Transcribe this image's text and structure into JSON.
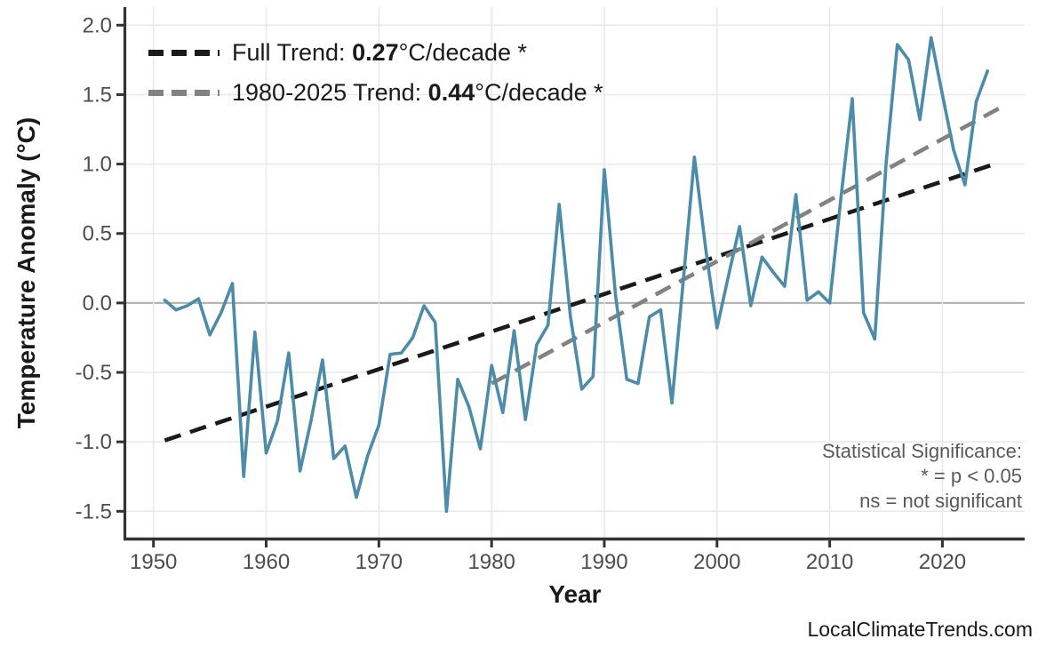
{
  "chart_data": {
    "type": "line",
    "title": "",
    "xlabel": "Year",
    "ylabel": "Temperature Anomaly (°C)",
    "xlim": [
      1947.5,
      2027.3
    ],
    "ylim": [
      -1.69,
      2.13
    ],
    "x_ticks": [
      1950,
      1960,
      1970,
      1980,
      1990,
      2000,
      2010,
      2020
    ],
    "y_ticks": [
      -1.5,
      -1.0,
      -0.5,
      0.0,
      0.5,
      1.0,
      1.5,
      2.0
    ],
    "grid": true,
    "series": [
      {
        "name": "annual-temperature-anomaly",
        "color": "#4d8ca8",
        "style": "solid",
        "x": [
          1951,
          1952,
          1953,
          1954,
          1955,
          1956,
          1957,
          1958,
          1959,
          1960,
          1961,
          1962,
          1963,
          1964,
          1965,
          1966,
          1967,
          1968,
          1969,
          1970,
          1971,
          1972,
          1973,
          1974,
          1975,
          1976,
          1977,
          1978,
          1979,
          1980,
          1981,
          1982,
          1983,
          1984,
          1985,
          1986,
          1987,
          1988,
          1989,
          1990,
          1991,
          1992,
          1993,
          1994,
          1995,
          1996,
          1997,
          1998,
          1999,
          2000,
          2001,
          2002,
          2003,
          2004,
          2005,
          2006,
          2007,
          2008,
          2009,
          2010,
          2011,
          2012,
          2013,
          2014,
          2015,
          2016,
          2017,
          2018,
          2019,
          2020,
          2021,
          2022,
          2023,
          2024
        ],
        "values": [
          0.02,
          -0.05,
          -0.02,
          0.03,
          -0.23,
          -0.07,
          0.14,
          -1.25,
          -0.21,
          -1.08,
          -0.85,
          -0.36,
          -1.21,
          -0.84,
          -0.41,
          -1.12,
          -1.03,
          -1.4,
          -1.1,
          -0.88,
          -0.37,
          -0.36,
          -0.25,
          -0.02,
          -0.14,
          -1.5,
          -0.55,
          -0.75,
          -1.05,
          -0.45,
          -0.79,
          -0.2,
          -0.84,
          -0.3,
          -0.16,
          0.71,
          -0.1,
          -0.62,
          -0.53,
          0.96,
          0.05,
          -0.55,
          -0.58,
          -0.1,
          -0.05,
          -0.72,
          0.15,
          1.05,
          0.39,
          -0.18,
          0.19,
          0.55,
          -0.02,
          0.33,
          0.22,
          0.12,
          0.78,
          0.02,
          0.08,
          0.0,
          0.76,
          1.47,
          -0.07,
          -0.26,
          1.0,
          1.86,
          1.75,
          1.32,
          1.91,
          1.5,
          1.1,
          0.85,
          1.45,
          1.67
        ]
      },
      {
        "name": "full-trend",
        "color": "#1a1a1a",
        "style": "dashed",
        "x": [
          1951,
          2025
        ],
        "values": [
          -0.99,
          1.01
        ]
      },
      {
        "name": "trend-1980-2025",
        "color": "#828282",
        "style": "dashed",
        "x": [
          1980,
          2025
        ],
        "values": [
          -0.58,
          1.4
        ]
      }
    ],
    "legend": [
      {
        "prefix": "Full Trend: ",
        "value": "0.27",
        "suffix": "°C/decade *",
        "color": "#1a1a1a"
      },
      {
        "prefix": "1980-2025 Trend: ",
        "value": "0.44",
        "suffix": "°C/decade *",
        "color": "#828282"
      }
    ],
    "annotations": {
      "line1": "Statistical Significance:",
      "line2": "* = p < 0.05",
      "line3": "ns = not significant"
    },
    "watermark": "LocalClimateTrends.com",
    "colors": {
      "background": "#ffffff",
      "gridline": "#e8e8e8",
      "zero_line": "#b5b5b5",
      "axis_line": "#333333",
      "tick_label": "#4d4d4d",
      "annotation_text": "#595959"
    },
    "legend_position": "top-left"
  }
}
